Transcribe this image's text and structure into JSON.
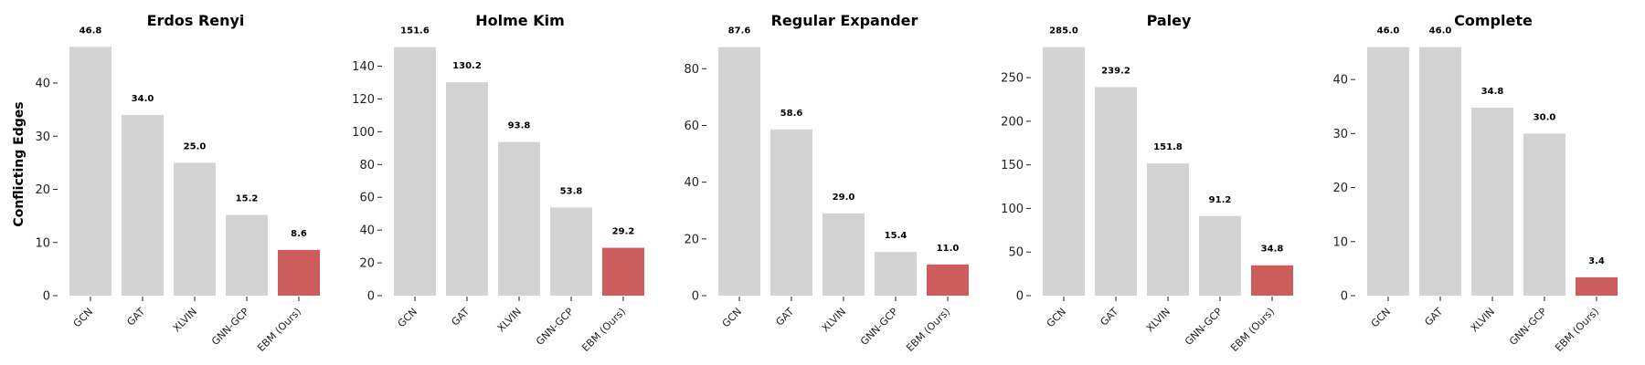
{
  "colors": {
    "baseline": "#d3d3d3",
    "ours": "#cd5c5c"
  },
  "chart_data": [
    {
      "type": "bar",
      "title": "Erdos Renyi",
      "ylabel": "Conflicting Edges",
      "categories": [
        "GCN",
        "GAT",
        "XLVIN",
        "GNN-GCP",
        "EBM (Ours)"
      ],
      "values": [
        46.8,
        34.0,
        25.0,
        15.2,
        8.6
      ],
      "value_labels": [
        "46.8",
        "34.0",
        "25.0",
        "15.2",
        "8.6"
      ],
      "yticks": [
        0,
        10,
        20,
        30,
        40
      ],
      "ylim": [
        0,
        49.1
      ],
      "grid": false
    },
    {
      "type": "bar",
      "title": "Holme Kim",
      "ylabel": "",
      "categories": [
        "GCN",
        "GAT",
        "XLVIN",
        "GNN-GCP",
        "EBM (Ours)"
      ],
      "values": [
        151.6,
        130.2,
        93.8,
        53.8,
        29.2
      ],
      "value_labels": [
        "151.6",
        "130.2",
        "93.8",
        "53.8",
        "29.2"
      ],
      "yticks": [
        0,
        20,
        40,
        60,
        80,
        100,
        120,
        140
      ],
      "ylim": [
        0,
        159.2
      ],
      "grid": false
    },
    {
      "type": "bar",
      "title": "Regular Expander",
      "ylabel": "",
      "categories": [
        "GCN",
        "GAT",
        "XLVIN",
        "GNN-GCP",
        "EBM (Ours)"
      ],
      "values": [
        87.6,
        58.6,
        29.0,
        15.4,
        11.0
      ],
      "value_labels": [
        "87.6",
        "58.6",
        "29.0",
        "15.4",
        "11.0"
      ],
      "yticks": [
        0,
        20,
        40,
        60,
        80
      ],
      "ylim": [
        0,
        92.0
      ],
      "grid": false
    },
    {
      "type": "bar",
      "title": "Paley",
      "ylabel": "",
      "categories": [
        "GCN",
        "GAT",
        "XLVIN",
        "GNN-GCP",
        "EBM (Ours)"
      ],
      "values": [
        285.0,
        239.2,
        151.8,
        91.2,
        34.8
      ],
      "value_labels": [
        "285.0",
        "239.2",
        "151.8",
        "91.2",
        "34.8"
      ],
      "yticks": [
        0,
        50,
        100,
        150,
        200,
        250
      ],
      "ylim": [
        0,
        299.3
      ],
      "grid": false
    },
    {
      "type": "bar",
      "title": "Complete",
      "ylabel": "",
      "categories": [
        "GCN",
        "GAT",
        "XLVIN",
        "GNN-GCP",
        "EBM (Ours)"
      ],
      "values": [
        46.0,
        46.0,
        34.8,
        30.0,
        3.4
      ],
      "value_labels": [
        "46.0",
        "46.0",
        "34.8",
        "30.0",
        "3.4"
      ],
      "yticks": [
        0,
        10,
        20,
        30,
        40
      ],
      "ylim": [
        0,
        48.3
      ],
      "grid": false
    }
  ]
}
